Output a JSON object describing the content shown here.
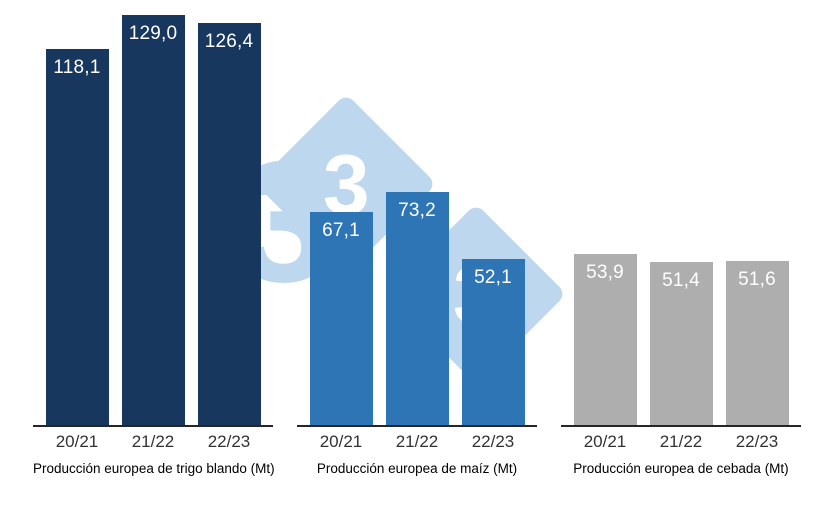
{
  "chart_data": [
    {
      "type": "bar",
      "title": "Producción europea de trigo blando (Mt)",
      "categories": [
        "20/21",
        "21/22",
        "22/23"
      ],
      "values": [
        118.1,
        129.0,
        126.4
      ],
      "value_labels": [
        "118,1",
        "129,0",
        "126,4"
      ],
      "bar_color": "#17375E",
      "ylim": [
        0,
        130
      ],
      "grid": false,
      "legend": "none"
    },
    {
      "type": "bar",
      "title": "Producción europea de maíz (Mt)",
      "categories": [
        "20/21",
        "21/22",
        "22/23"
      ],
      "values": [
        67.1,
        73.2,
        52.1
      ],
      "value_labels": [
        "67,1",
        "73,2",
        "52,1"
      ],
      "bar_color": "#2E75B6",
      "ylim": [
        0,
        130
      ],
      "grid": false,
      "legend": "none"
    },
    {
      "type": "bar",
      "title": "Producción europea de cebada (Mt)",
      "categories": [
        "20/21",
        "21/22",
        "22/23"
      ],
      "values": [
        53.9,
        51.4,
        51.6
      ],
      "value_labels": [
        "53,9",
        "51,4",
        "51,6"
      ],
      "bar_color": "#AEAEAE",
      "ylim": [
        0,
        130
      ],
      "grid": false,
      "legend": "none"
    }
  ],
  "watermark": {
    "digits": [
      "3",
      "3",
      "3"
    ],
    "color": "#BDD7EE"
  }
}
